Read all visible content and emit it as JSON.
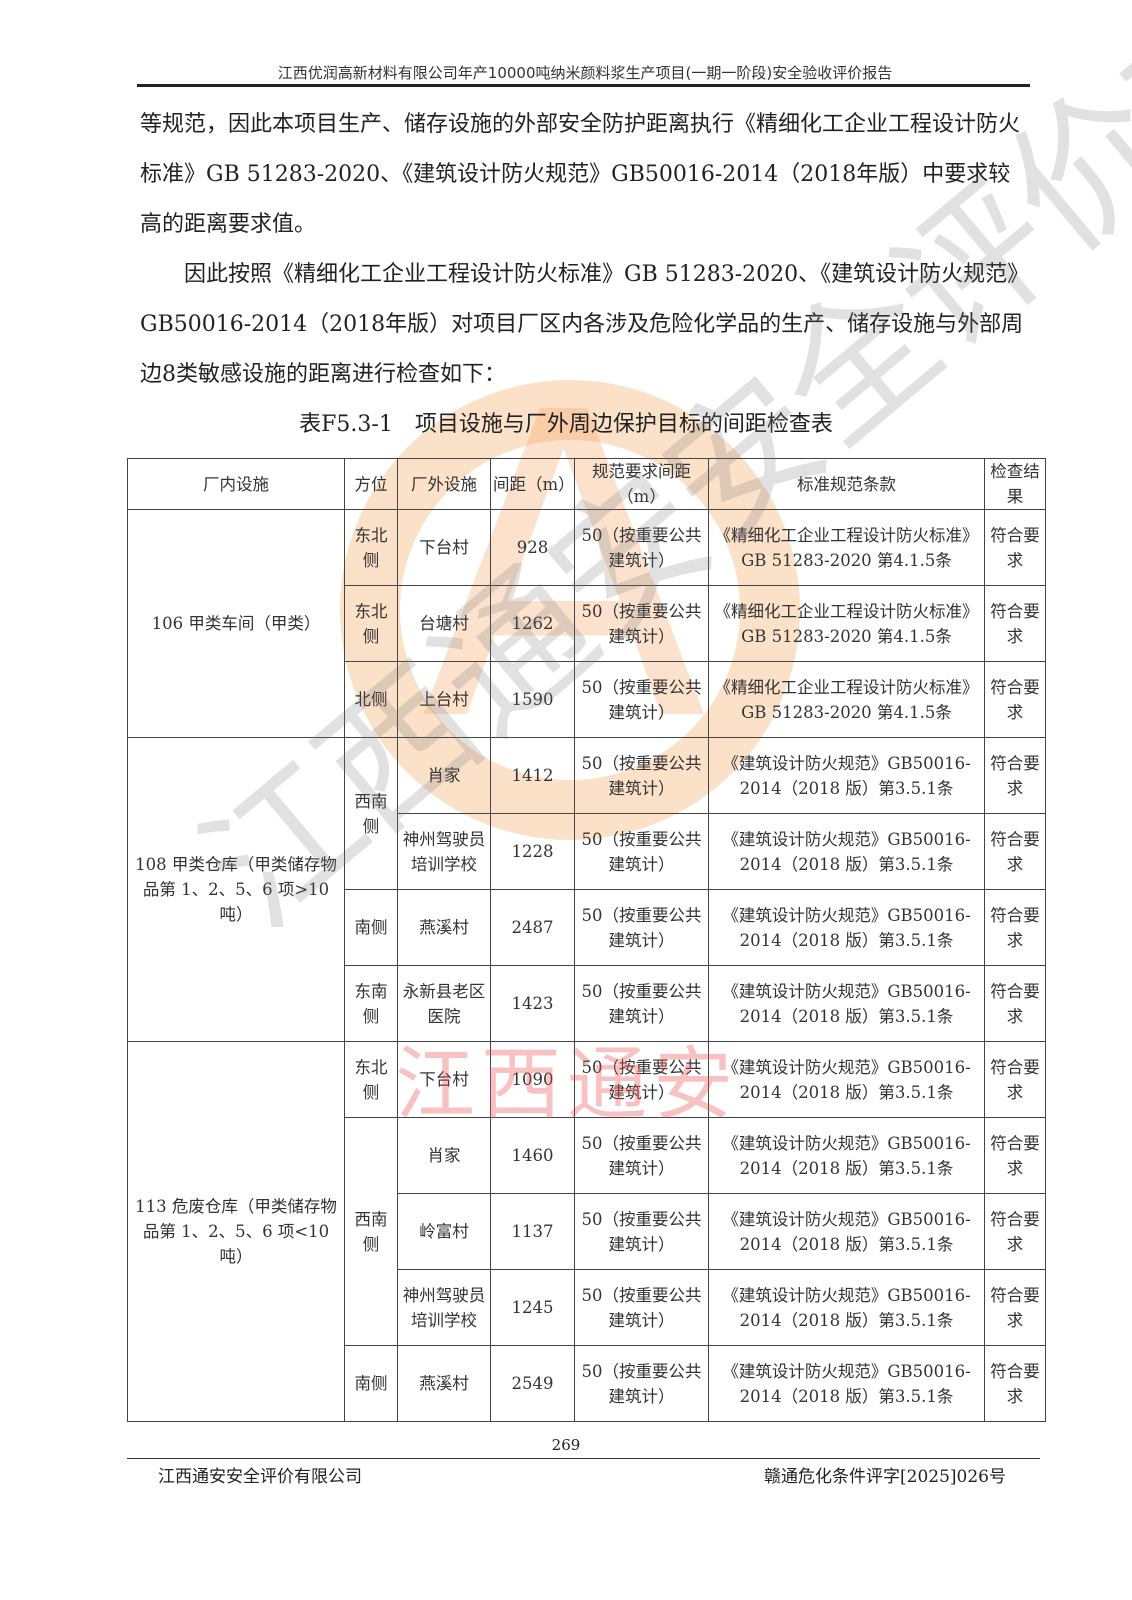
{
  "header": {
    "title": "江西优润高新材料有限公司年产10000吨纳米颜料浆生产项目(一期一阶段)安全验收评价报告"
  },
  "body": {
    "paragraph1": "等规范，因此本项目生产、储存设施的外部安全防护距离执行《精细化工企业工程设计防火标准》GB 51283-2020、《建筑设计防火规范》GB50016-2014（2018年版）中要求较高的距离要求值。",
    "paragraph2": "因此按照《精细化工企业工程设计防火标准》GB 51283-2020、《建筑设计防火规范》GB50016-2014（2018年版）对项目厂区内各涉及危险化学品的生产、储存设施与外部周边8类敏感设施的距离进行检查如下：",
    "table_caption": "表F5.3-1　项目设施与厂外周边保护目标的间距检查表"
  },
  "table": {
    "headers": [
      "厂内设施",
      "方位",
      "厂外设施",
      "间距（m）",
      "规范要求间距（m）",
      "标准规范条款",
      "检查结果"
    ],
    "groups": [
      {
        "facility": "106 甲类车间（甲类）",
        "directions": [
          {
            "dir": "东北侧",
            "rows": [
              {
                "target": "下台村",
                "distance": "928",
                "required": "50（按重要公共建筑计）",
                "clause": "《精细化工企业工程设计防火标准》GB 51283-2020 第4.1.5条",
                "result": "符合要求"
              }
            ]
          },
          {
            "dir": "东北侧",
            "rows": [
              {
                "target": "台塘村",
                "distance": "1262",
                "required": "50（按重要公共建筑计）",
                "clause": "《精细化工企业工程设计防火标准》GB 51283-2020 第4.1.5条",
                "result": "符合要求"
              }
            ]
          },
          {
            "dir": "北侧",
            "rows": [
              {
                "target": "上台村",
                "distance": "1590",
                "required": "50（按重要公共建筑计）",
                "clause": "《精细化工企业工程设计防火标准》GB 51283-2020 第4.1.5条",
                "result": "符合要求"
              }
            ]
          }
        ]
      },
      {
        "facility": "108 甲类仓库（甲类储存物品第 1、2、5、6 项>10 吨）",
        "directions": [
          {
            "dir": "西南侧",
            "rows": [
              {
                "target": "肖家",
                "distance": "1412",
                "required": "50（按重要公共建筑计）",
                "clause": "《建筑设计防火规范》GB50016-2014（2018 版）第3.5.1条",
                "result": "符合要求"
              },
              {
                "target": "神州驾驶员培训学校",
                "distance": "1228",
                "required": "50（按重要公共建筑计）",
                "clause": "《建筑设计防火规范》GB50016-2014（2018 版）第3.5.1条",
                "result": "符合要求"
              }
            ]
          },
          {
            "dir": "南侧",
            "rows": [
              {
                "target": "燕溪村",
                "distance": "2487",
                "required": "50（按重要公共建筑计）",
                "clause": "《建筑设计防火规范》GB50016-2014（2018 版）第3.5.1条",
                "result": "符合要求"
              }
            ]
          },
          {
            "dir": "东南侧",
            "rows": [
              {
                "target": "永新县老区医院",
                "distance": "1423",
                "required": "50（按重要公共建筑计）",
                "clause": "《建筑设计防火规范》GB50016-2014（2018 版）第3.5.1条",
                "result": "符合要求"
              }
            ]
          }
        ]
      },
      {
        "facility": "113 危废仓库（甲类储存物品第 1、2、5、6 项<10 吨）",
        "directions": [
          {
            "dir": "东北侧",
            "rows": [
              {
                "target": "下台村",
                "distance": "1090",
                "required": "50（按重要公共建筑计）",
                "clause": "《建筑设计防火规范》GB50016-2014（2018 版）第3.5.1条",
                "result": "符合要求"
              }
            ]
          },
          {
            "dir": "西南侧",
            "rows": [
              {
                "target": "肖家",
                "distance": "1460",
                "required": "50（按重要公共建筑计）",
                "clause": "《建筑设计防火规范》GB50016-2014（2018 版）第3.5.1条",
                "result": "符合要求"
              },
              {
                "target": "岭富村",
                "distance": "1137",
                "required": "50（按重要公共建筑计）",
                "clause": "《建筑设计防火规范》GB50016-2014（2018 版）第3.5.1条",
                "result": "符合要求"
              },
              {
                "target": "神州驾驶员培训学校",
                "distance": "1245",
                "required": "50（按重要公共建筑计）",
                "clause": "《建筑设计防火规范》GB50016-2014（2018 版）第3.5.1条",
                "result": "符合要求"
              }
            ]
          },
          {
            "dir": "南侧",
            "rows": [
              {
                "target": "燕溪村",
                "distance": "2549",
                "required": "50（按重要公共建筑计）",
                "clause": "《建筑设计防火规范》GB50016-2014（2018 版）第3.5.1条",
                "result": "符合要求"
              }
            ]
          }
        ]
      }
    ]
  },
  "footer": {
    "page_number": "269",
    "company": "江西通安安全评价有限公司",
    "doc_number": "赣通危化条件评字[2025]026号"
  },
  "watermark": {
    "text": "江西通安安全评价有限公司",
    "logo_text": "江西通安",
    "logo_color": "#f5a060"
  }
}
